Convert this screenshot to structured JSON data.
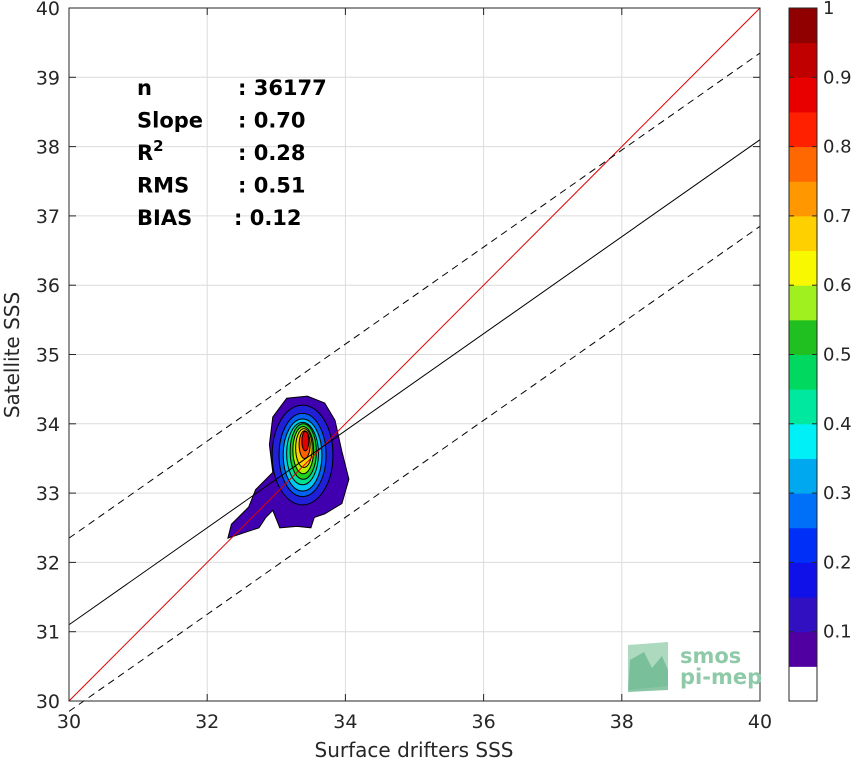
{
  "chart_data": {
    "type": "scatter",
    "subtype": "density-contour",
    "xlabel": "Surface drifters SSS",
    "ylabel": "Satellite SSS",
    "xlim": [
      30,
      40
    ],
    "ylim": [
      30,
      40
    ],
    "xticks": [
      "30",
      "32",
      "34",
      "36",
      "38",
      "40"
    ],
    "yticks": [
      "30",
      "31",
      "32",
      "33",
      "34",
      "35",
      "36",
      "37",
      "38",
      "39",
      "40"
    ],
    "grid": true,
    "stats": [
      {
        "label": "n",
        "value": ": 36177"
      },
      {
        "label": "Slope",
        "value": ": 0.70"
      },
      {
        "label": "R",
        "sup": "2",
        "value": ": 0.28"
      },
      {
        "label": "RMS",
        "value": ": 0.51"
      },
      {
        "label": "BIAS",
        "value": ": 0.12"
      }
    ],
    "lines": [
      {
        "name": "identity",
        "color": "#e00000",
        "style": "solid",
        "points": [
          [
            30,
            30
          ],
          [
            40,
            40
          ]
        ]
      },
      {
        "name": "regression",
        "color": "#000000",
        "style": "solid",
        "points": [
          [
            30,
            31.1
          ],
          [
            40,
            38.1
          ]
        ]
      },
      {
        "name": "upper-bound",
        "color": "#000000",
        "style": "dashed",
        "points": [
          [
            30,
            32.35
          ],
          [
            40,
            39.35
          ]
        ]
      },
      {
        "name": "lower-bound",
        "color": "#000000",
        "style": "dashed",
        "points": [
          [
            30,
            29.85
          ],
          [
            40,
            36.85
          ]
        ]
      }
    ],
    "density": {
      "center": [
        33.4,
        33.6
      ],
      "levels": [
        {
          "level": 0.05,
          "color": "#4000b0",
          "rx": 0.62,
          "ry": 0.9,
          "cx": 33.35,
          "cy": 33.45
        },
        {
          "level": 0.1,
          "color": "#2020d8",
          "rx": 0.44,
          "ry": 0.72,
          "cx": 33.38,
          "cy": 33.55
        },
        {
          "level": 0.2,
          "color": "#0060f0",
          "rx": 0.34,
          "ry": 0.6,
          "cx": 33.38,
          "cy": 33.55
        },
        {
          "level": 0.3,
          "color": "#00c8f0",
          "rx": 0.28,
          "ry": 0.52,
          "cx": 33.38,
          "cy": 33.55
        },
        {
          "level": 0.4,
          "color": "#00e090",
          "rx": 0.23,
          "ry": 0.45,
          "cx": 33.38,
          "cy": 33.57
        },
        {
          "level": 0.5,
          "color": "#20d020",
          "rx": 0.19,
          "ry": 0.4,
          "cx": 33.39,
          "cy": 33.6
        },
        {
          "level": 0.6,
          "color": "#b0f000",
          "rx": 0.15,
          "ry": 0.34,
          "cx": 33.39,
          "cy": 33.62
        },
        {
          "level": 0.7,
          "color": "#ffd000",
          "rx": 0.12,
          "ry": 0.28,
          "cx": 33.4,
          "cy": 33.65
        },
        {
          "level": 0.8,
          "color": "#ff6000",
          "rx": 0.08,
          "ry": 0.2,
          "cx": 33.41,
          "cy": 33.7
        },
        {
          "level": 0.9,
          "color": "#e00000",
          "rx": 0.05,
          "ry": 0.14,
          "cx": 33.42,
          "cy": 33.75
        }
      ]
    },
    "colorbar": {
      "range": [
        0,
        1
      ],
      "colors": [
        "#ffffff",
        "#5000a0",
        "#3010c0",
        "#1010e8",
        "#0030f8",
        "#0070f8",
        "#00a8f0",
        "#00f0f8",
        "#00e8a0",
        "#00d860",
        "#20c020",
        "#a0f020",
        "#f8f800",
        "#ffd000",
        "#ff9800",
        "#ff6800",
        "#ff2000",
        "#e80000",
        "#c00000",
        "#900000"
      ],
      "ticks": [
        "0.1",
        "0.2",
        "0.3",
        "0.4",
        "0.5",
        "0.6",
        "0.7",
        "0.8",
        "0.9",
        "1"
      ]
    }
  },
  "logo": {
    "line1": "smos",
    "line2": "pi-mep"
  }
}
